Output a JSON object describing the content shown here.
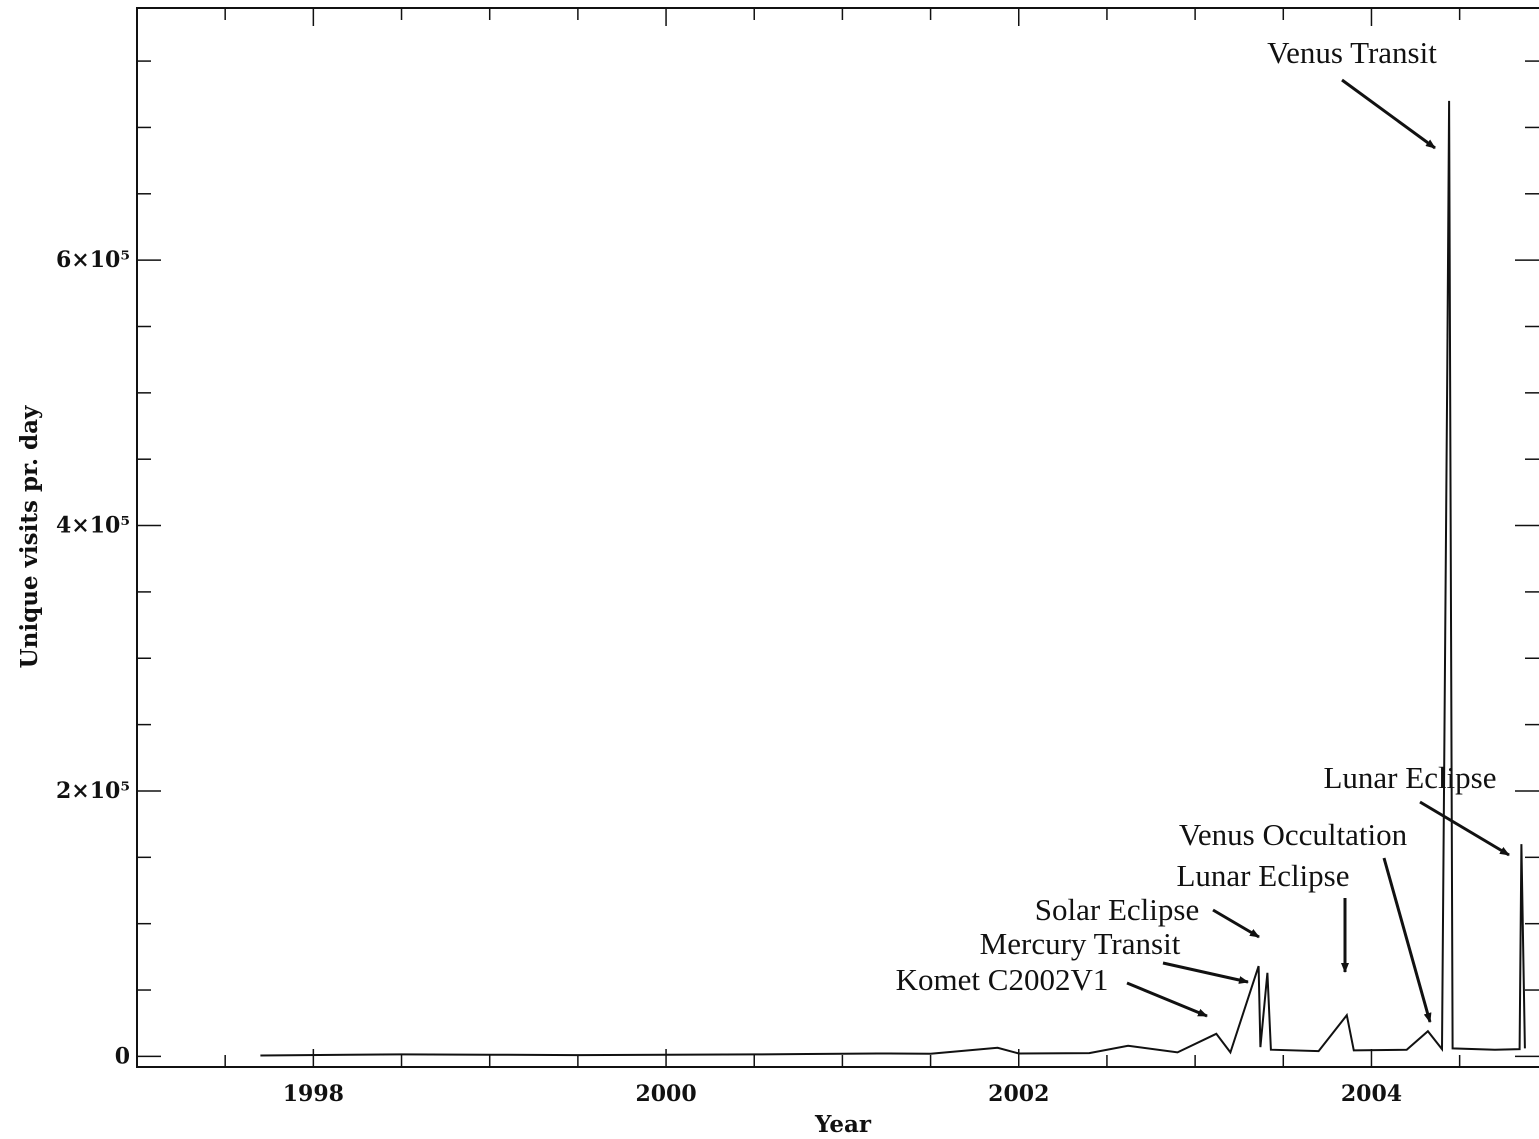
{
  "chart_data": {
    "type": "line",
    "title": "",
    "xlabel": "Year",
    "ylabel": "Unique visits pr. day",
    "xlim": [
      1997.0,
      2004.95
    ],
    "ylim": [
      -8000,
      790000
    ],
    "grid": false,
    "x_ticks": [
      1998,
      2000,
      2002,
      2004
    ],
    "x_tick_labels": [
      "1998",
      "2000",
      "2002",
      "2004"
    ],
    "y_ticks": [
      0,
      200000,
      400000,
      600000
    ],
    "y_tick_labels": [
      "0",
      "2×10⁵",
      "4×10⁵",
      "6×10⁵"
    ],
    "series": [
      {
        "values": [
          {
            "x": 1997.7,
            "y": 700
          },
          {
            "x": 1998.2,
            "y": 1200
          },
          {
            "x": 1998.5,
            "y": 1500
          },
          {
            "x": 1999.0,
            "y": 1300
          },
          {
            "x": 1999.5,
            "y": 1000
          },
          {
            "x": 2000.0,
            "y": 1200
          },
          {
            "x": 2000.5,
            "y": 1500
          },
          {
            "x": 2000.8,
            "y": 1800
          },
          {
            "x": 2001.2,
            "y": 2200
          },
          {
            "x": 2001.5,
            "y": 2000
          },
          {
            "x": 2001.88,
            "y": 6500
          },
          {
            "x": 2002.0,
            "y": 2200
          },
          {
            "x": 2002.4,
            "y": 2500
          },
          {
            "x": 2002.62,
            "y": 8000
          },
          {
            "x": 2002.9,
            "y": 3000
          },
          {
            "x": 2003.12,
            "y": 17000
          },
          {
            "x": 2003.2,
            "y": 3000
          },
          {
            "x": 2003.36,
            "y": 68000
          },
          {
            "x": 2003.37,
            "y": 7000
          },
          {
            "x": 2003.41,
            "y": 63000
          },
          {
            "x": 2003.43,
            "y": 5000
          },
          {
            "x": 2003.7,
            "y": 4000
          },
          {
            "x": 2003.86,
            "y": 31000
          },
          {
            "x": 2003.9,
            "y": 4500
          },
          {
            "x": 2004.2,
            "y": 5000
          },
          {
            "x": 2004.32,
            "y": 19000
          },
          {
            "x": 2004.4,
            "y": 5500
          },
          {
            "x": 2004.43,
            "y": 520000
          },
          {
            "x": 2004.44,
            "y": 720000
          },
          {
            "x": 2004.46,
            "y": 6000
          },
          {
            "x": 2004.7,
            "y": 5000
          },
          {
            "x": 2004.84,
            "y": 5500
          },
          {
            "x": 2004.85,
            "y": 160000
          },
          {
            "x": 2004.87,
            "y": 6000
          }
        ]
      }
    ],
    "annotations": [
      {
        "text": "Venus Transit",
        "x": 2004.44,
        "y": 720000
      },
      {
        "text": "Lunar Eclipse",
        "x": 2004.85,
        "y": 160000
      },
      {
        "text": "Venus Occultation",
        "x": 2004.32,
        "y": 19000
      },
      {
        "text": "Lunar Eclipse",
        "x": 2003.86,
        "y": 31000
      },
      {
        "text": "Solar Eclipse",
        "x": 2003.36,
        "y": 68000
      },
      {
        "text": "Mercury Transit",
        "x": 2003.41,
        "y": 63000
      },
      {
        "text": "Komet C2002V1",
        "x": 2003.12,
        "y": 17000
      }
    ]
  }
}
